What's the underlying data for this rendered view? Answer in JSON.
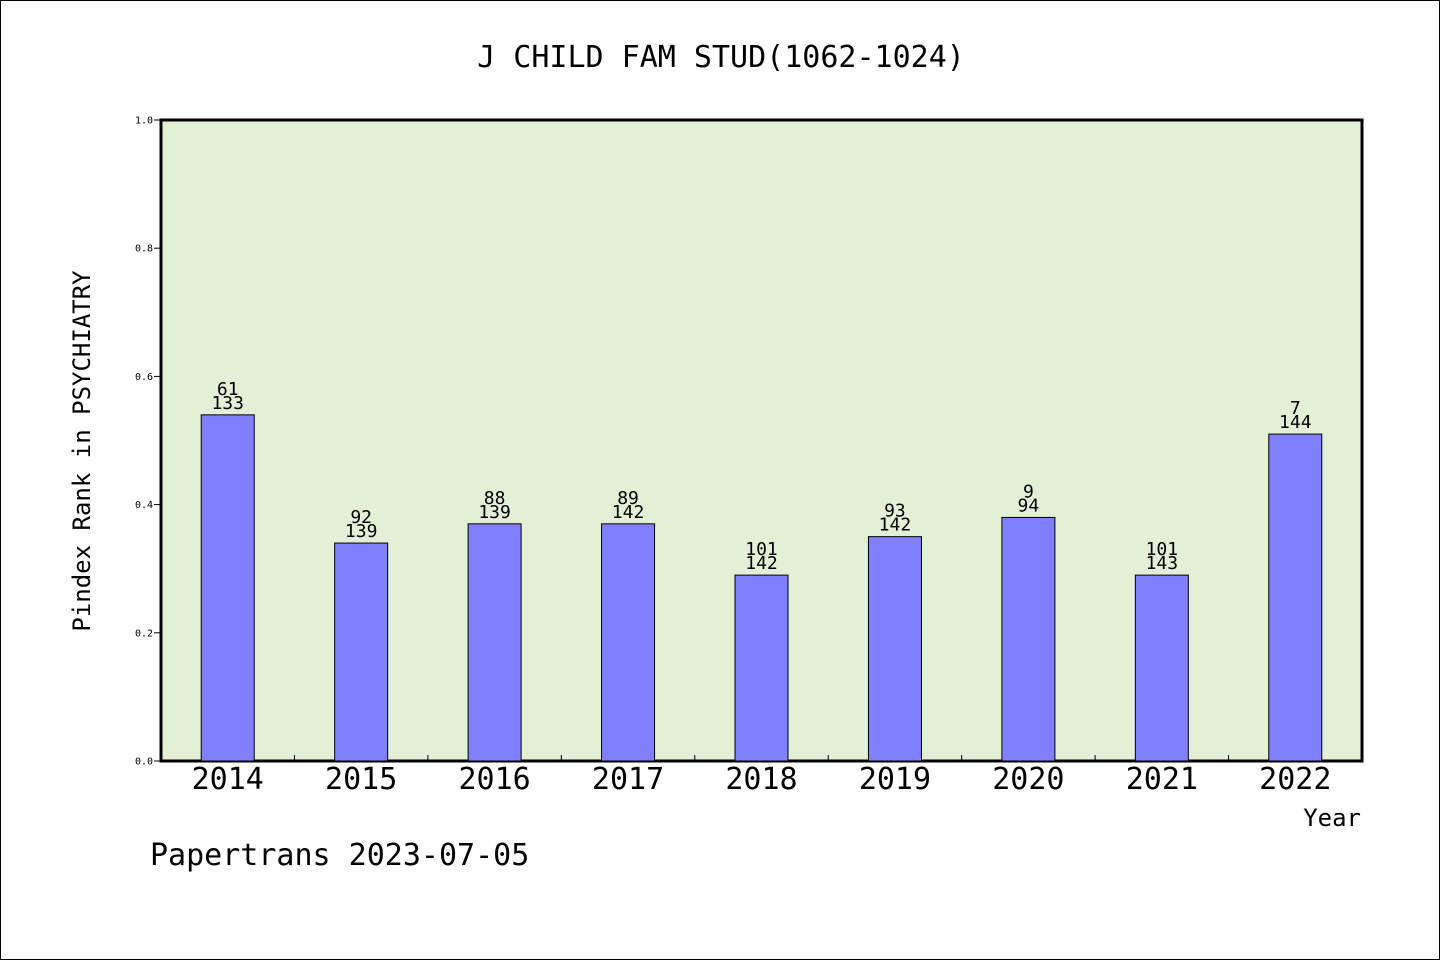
{
  "chart_data": {
    "type": "bar",
    "title": "J CHILD FAM STUD(1062-1024)",
    "xlabel": "Year",
    "ylabel": "Pindex Rank in PSYCHIATRY",
    "ylim": [
      0,
      1.0
    ],
    "yticks": [
      "0.0",
      "0.2",
      "0.4",
      "0.6",
      "0.8",
      "1.0"
    ],
    "categories": [
      "2014",
      "2015",
      "2016",
      "2017",
      "2018",
      "2019",
      "2020",
      "2021",
      "2022"
    ],
    "values": [
      0.54,
      0.34,
      0.37,
      0.37,
      0.29,
      0.35,
      0.38,
      0.29,
      0.51
    ],
    "label_top": [
      "61",
      "92",
      "88",
      "89",
      "101",
      "93",
      "9",
      "101",
      "7"
    ],
    "label_bottom": [
      "133",
      "139",
      "139",
      "142",
      "142",
      "142",
      "94",
      "143",
      "144"
    ],
    "grid": false,
    "legend": "none",
    "colors": {
      "bar": "#8080ff",
      "plot_background": "#e2f0d6",
      "axis": "#000000"
    }
  },
  "footer": "Papertrans 2023-07-05"
}
